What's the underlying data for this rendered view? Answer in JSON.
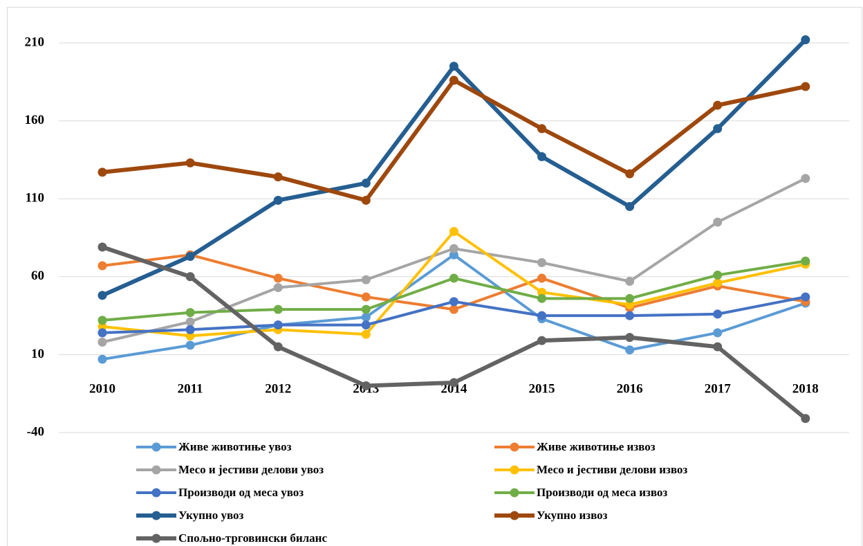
{
  "chart_data": {
    "type": "line",
    "categories": [
      "2010",
      "2011",
      "2012",
      "2013",
      "2014",
      "2015",
      "2016",
      "2017",
      "2018"
    ],
    "ylim": [
      -40,
      230
    ],
    "yticks": [
      -40,
      10,
      60,
      110,
      160,
      210
    ],
    "grid": true,
    "series": [
      {
        "name": "Живе животиње увоз",
        "color": "#5b9bd5",
        "values": [
          7,
          16,
          29,
          34,
          74,
          33,
          13,
          24,
          43
        ]
      },
      {
        "name": "Живе животиње извоз",
        "color": "#ed7d31",
        "values": [
          67,
          74,
          59,
          47,
          39,
          59,
          40,
          54,
          44
        ]
      },
      {
        "name": "Месо и јестиви делови увоз",
        "color": "#a5a5a5",
        "values": [
          18,
          31,
          53,
          58,
          78,
          69,
          57,
          95,
          123
        ]
      },
      {
        "name": "Месо и јестиви делови извоз",
        "color": "#ffc000",
        "values": [
          28,
          22,
          26,
          23,
          89,
          50,
          42,
          56,
          68
        ]
      },
      {
        "name": "Производи од меса увоз",
        "color": "#4472c4",
        "values": [
          24,
          26,
          29,
          29,
          44,
          35,
          35,
          36,
          47
        ]
      },
      {
        "name": "Производи од меса извоз",
        "color": "#70ad47",
        "values": [
          32,
          37,
          39,
          39,
          59,
          46,
          46,
          61,
          70
        ]
      },
      {
        "name": "Укупно увоз",
        "color": "#255e91",
        "values": [
          48,
          73,
          109,
          120,
          195,
          137,
          105,
          155,
          212
        ]
      },
      {
        "name": "Укупно извоз",
        "color": "#9e480e",
        "values": [
          127,
          133,
          124,
          109,
          186,
          155,
          126,
          170,
          182
        ]
      },
      {
        "name": "Спољно-трговински биланс",
        "color": "#636363",
        "values": [
          79,
          60,
          15,
          -10,
          -8,
          19,
          21,
          15,
          -31
        ]
      }
    ]
  }
}
